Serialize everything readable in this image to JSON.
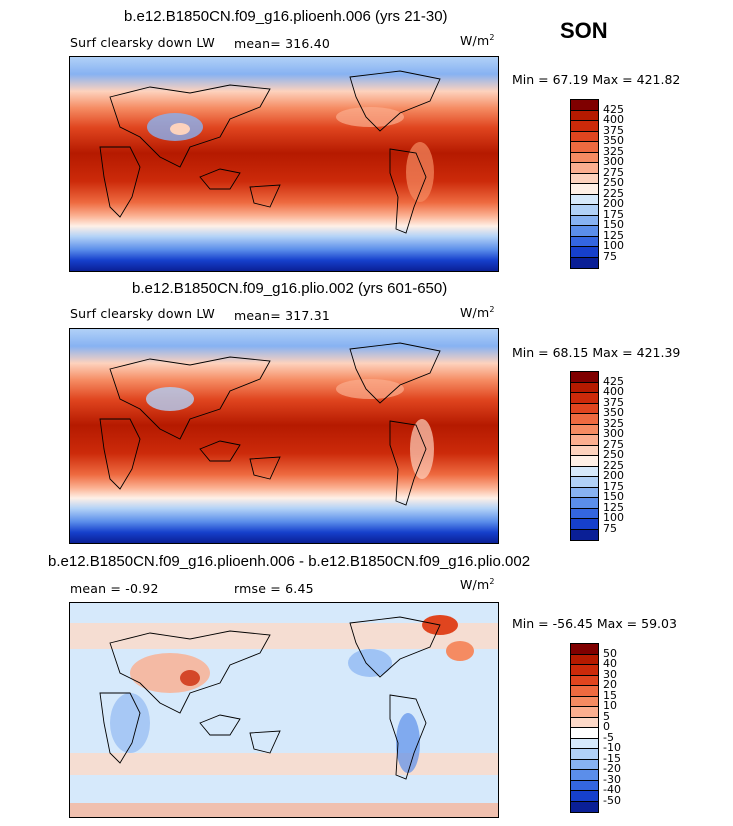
{
  "season": "SON",
  "units_base": "W/m",
  "units_exp": "2",
  "panels": [
    {
      "title": "b.e12.B1850CN.f09_g16.plioenh.006 (yrs 21-30)",
      "variable": "Surf clearsky down LW",
      "mean_label": "mean= 316.40",
      "minmax": "Min =  67.19 Max = 421.82"
    },
    {
      "title": "b.e12.B1850CN.f09_g16.plio.002 (yrs 601-650)",
      "variable": "Surf clearsky down LW",
      "mean_label": "mean= 317.31",
      "minmax": "Min =  68.15 Max = 421.39"
    },
    {
      "title": "b.e12.B1850CN.f09_g16.plioenh.006 - b.e12.B1850CN.f09_g16.plio.002",
      "mean_label": "mean =  -0.92",
      "rmse_label": "rmse =   6.45",
      "minmax": "Min = -56.45 Max =  59.03"
    }
  ],
  "colorbar_abs": {
    "labels": [
      "425",
      "400",
      "375",
      "350",
      "325",
      "300",
      "275",
      "250",
      "225",
      "200",
      "175",
      "150",
      "125",
      "100",
      "75"
    ],
    "colors": [
      "#7f0000",
      "#b51a00",
      "#cc2a0a",
      "#e0451f",
      "#ee6a40",
      "#f58b62",
      "#fbae8f",
      "#fdd2bd",
      "#fff0e6",
      "#d6e9fb",
      "#b1d1f7",
      "#87b2f2",
      "#5b8eea",
      "#3466e0",
      "#1640cc",
      "#0a1f96"
    ]
  },
  "colorbar_diff": {
    "labels": [
      "50",
      "40",
      "30",
      "20",
      "15",
      "10",
      "5",
      "0",
      "-5",
      "-10",
      "-15",
      "-20",
      "-30",
      "-40",
      "-50"
    ],
    "colors": [
      "#7f0000",
      "#b51a00",
      "#cc2a0a",
      "#e0451f",
      "#ee6a40",
      "#f58b62",
      "#fbae8f",
      "#fdd9c8",
      "#ffffff",
      "#d6e9fb",
      "#b1d1f7",
      "#87b2f2",
      "#5b8eea",
      "#3466e0",
      "#1640cc",
      "#0a1f96"
    ]
  }
}
